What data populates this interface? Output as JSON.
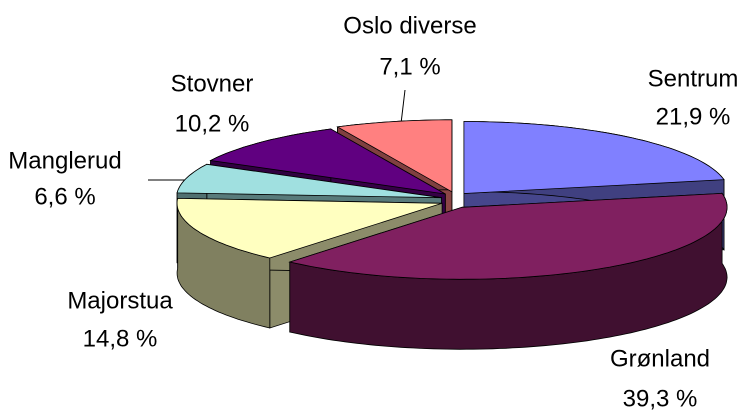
{
  "chart_data": {
    "type": "pie3d",
    "categories": [
      "Sentrum",
      "Grønland",
      "Majorstua",
      "Manglerud",
      "Stovner",
      "Oslo diverse"
    ],
    "values": [
      21.9,
      39.3,
      14.8,
      6.6,
      10.2,
      7.1
    ],
    "value_labels": [
      "21,9 %",
      "39,3 %",
      "14,8 %",
      "6,6 %",
      "10,2 %",
      "7,1 %"
    ],
    "colors": [
      "#8080ff",
      "#802060",
      "#ffffc0",
      "#a0e0e0",
      "#600080",
      "#ff8080"
    ]
  }
}
